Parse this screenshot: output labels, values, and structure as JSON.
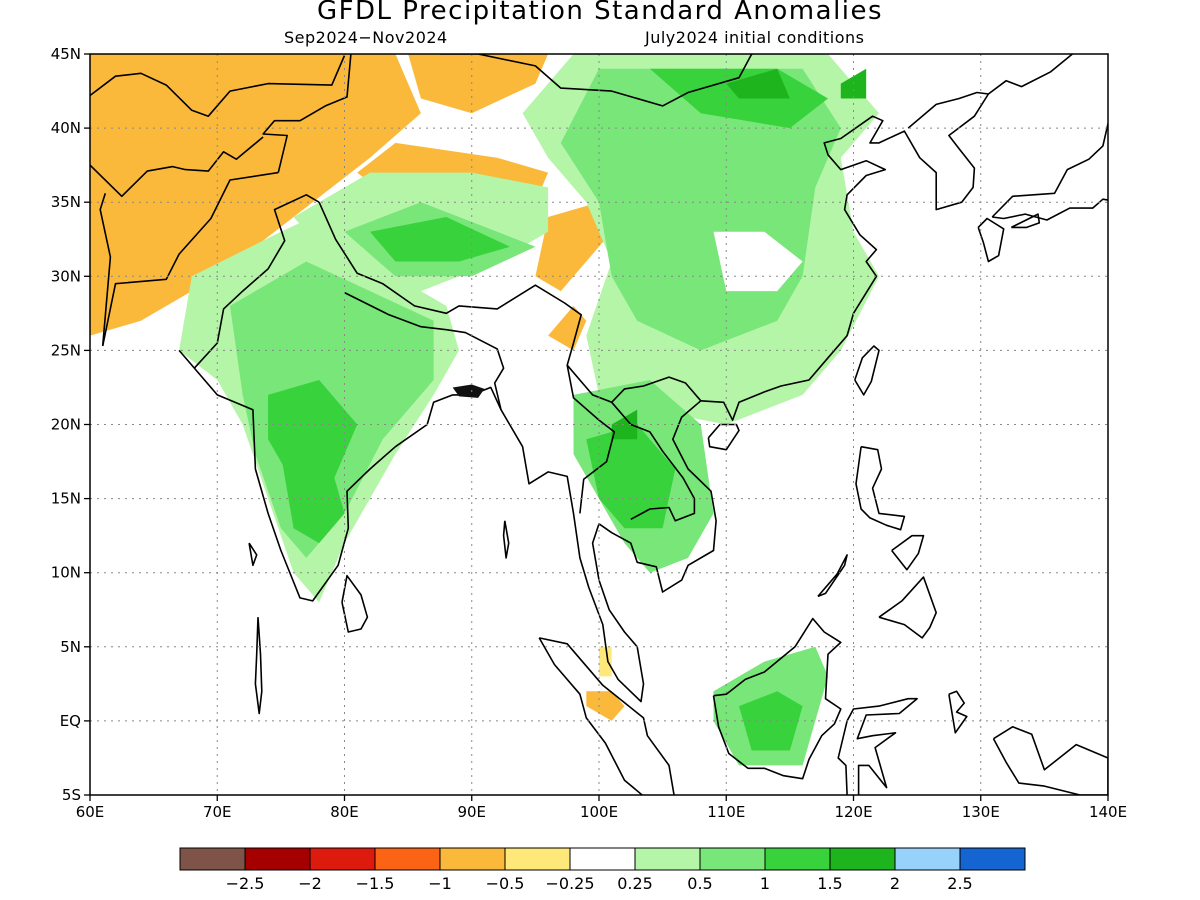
{
  "title": "GFDL Precipitation Standard Anomalies",
  "period": "Sep2024−Nov2024",
  "init": "July2024 initial conditions",
  "lon_ticks": [
    60,
    70,
    80,
    90,
    100,
    110,
    120,
    130,
    140
  ],
  "lon_labels": [
    "60E",
    "70E",
    "80E",
    "90E",
    "100E",
    "110E",
    "120E",
    "130E",
    "140E"
  ],
  "lat_ticks": [
    45,
    40,
    35,
    30,
    25,
    20,
    15,
    10,
    5,
    0,
    -5
  ],
  "lat_labels": [
    "45N",
    "40N",
    "35N",
    "30N",
    "25N",
    "20N",
    "15N",
    "10N",
    "5N",
    "EQ",
    "5S"
  ],
  "extent": {
    "lon": [
      60,
      140
    ],
    "lat": [
      -5,
      45
    ]
  },
  "colorbar": {
    "colors": [
      "#7f5448",
      "#a50000",
      "#dd1a0e",
      "#fa6414",
      "#fbb93c",
      "#fee87a",
      "#ffffff",
      "#b4f5a8",
      "#78e678",
      "#37d23c",
      "#1eb41e",
      "#96d2fa",
      "#1464d2"
    ],
    "labels": [
      "−2.5",
      "−2",
      "−1.5",
      "−1",
      "−0.5",
      "−0.25",
      "0.25",
      "0.5",
      "1",
      "1.5",
      "2",
      "2.5"
    ]
  },
  "regions": [
    {
      "name": "central-asia-dry",
      "level": -1,
      "poly": [
        [
          60,
          45
        ],
        [
          80,
          45
        ],
        [
          82,
          41
        ],
        [
          79,
          37
        ],
        [
          74,
          34
        ],
        [
          68,
          31
        ],
        [
          62,
          28
        ],
        [
          60,
          27
        ]
      ]
    },
    {
      "name": "central-asia-dry-edge",
      "level": -0.5,
      "poly": [
        [
          60,
          45
        ],
        [
          84,
          45
        ],
        [
          86,
          41
        ],
        [
          82,
          38
        ],
        [
          76,
          34
        ],
        [
          70,
          30
        ],
        [
          64,
          27
        ],
        [
          60,
          26
        ]
      ]
    },
    {
      "name": "mongolia-dry",
      "level": -0.5,
      "poly": [
        [
          85,
          45
        ],
        [
          96,
          45
        ],
        [
          95,
          43
        ],
        [
          90,
          41
        ],
        [
          86,
          42
        ]
      ]
    },
    {
      "name": "tarim-dry",
      "level": -0.5,
      "poly": [
        [
          81,
          37
        ],
        [
          84,
          39
        ],
        [
          92,
          38
        ],
        [
          96,
          37
        ],
        [
          95,
          35
        ],
        [
          90,
          36
        ],
        [
          84,
          35
        ]
      ]
    },
    {
      "name": "tibet-east-dry",
      "level": -0.5,
      "poly": [
        [
          96,
          34
        ],
        [
          100,
          35
        ],
        [
          101,
          33
        ],
        [
          99,
          31
        ],
        [
          97,
          29
        ],
        [
          95,
          30
        ]
      ]
    },
    {
      "name": "yunnan-dry",
      "level": -0.5,
      "poly": [
        [
          96,
          26
        ],
        [
          98,
          28
        ],
        [
          99,
          27
        ],
        [
          98,
          25
        ]
      ]
    },
    {
      "name": "sumatra-dry",
      "level": -0.5,
      "poly": [
        [
          99,
          2
        ],
        [
          101,
          2
        ],
        [
          102,
          1
        ],
        [
          101,
          0
        ],
        [
          99,
          1
        ]
      ]
    },
    {
      "name": "sumatra-dry-n",
      "level": -0.25,
      "poly": [
        [
          100,
          5
        ],
        [
          101,
          5
        ],
        [
          101,
          3
        ],
        [
          100,
          3
        ]
      ]
    },
    {
      "name": "india-north-wet",
      "level": 0.5,
      "poly": [
        [
          68,
          30
        ],
        [
          75,
          33
        ],
        [
          80,
          35
        ],
        [
          84,
          30
        ],
        [
          88,
          28
        ],
        [
          89,
          25
        ],
        [
          87,
          22
        ],
        [
          84,
          18
        ],
        [
          80,
          12
        ],
        [
          78,
          8
        ],
        [
          76,
          10
        ],
        [
          74,
          15
        ],
        [
          72,
          20
        ],
        [
          70,
          23
        ],
        [
          67,
          25
        ]
      ]
    },
    {
      "name": "tibet-wet",
      "level": 0.5,
      "poly": [
        [
          76,
          34
        ],
        [
          82,
          37
        ],
        [
          90,
          37
        ],
        [
          96,
          36
        ],
        [
          96,
          33
        ],
        [
          92,
          31
        ],
        [
          86,
          29
        ],
        [
          80,
          30
        ]
      ]
    },
    {
      "name": "china-wet",
      "level": 0.5,
      "poly": [
        [
          98,
          45
        ],
        [
          118,
          45
        ],
        [
          122,
          41
        ],
        [
          119,
          38
        ],
        [
          120,
          33
        ],
        [
          122,
          30
        ],
        [
          119,
          25
        ],
        [
          116,
          22
        ],
        [
          110,
          20
        ],
        [
          104,
          21
        ],
        [
          100,
          22
        ],
        [
          99,
          26
        ],
        [
          101,
          31
        ],
        [
          99,
          35
        ],
        [
          96,
          38
        ],
        [
          94,
          41
        ]
      ]
    },
    {
      "name": "india-wet-core",
      "level": 1,
      "poly": [
        [
          71,
          28
        ],
        [
          77,
          31
        ],
        [
          82,
          29
        ],
        [
          87,
          27
        ],
        [
          87,
          23
        ],
        [
          83,
          19
        ],
        [
          80,
          14
        ],
        [
          77,
          11
        ],
        [
          75,
          13
        ],
        [
          73,
          18
        ],
        [
          72,
          22
        ]
      ]
    },
    {
      "name": "tibet-wet-core",
      "level": 1,
      "poly": [
        [
          80,
          33
        ],
        [
          86,
          35
        ],
        [
          92,
          33
        ],
        [
          95,
          32
        ],
        [
          90,
          30
        ],
        [
          84,
          30
        ]
      ]
    },
    {
      "name": "china-wet-core",
      "level": 1,
      "poly": [
        [
          100,
          44
        ],
        [
          116,
          44
        ],
        [
          119,
          40
        ],
        [
          117,
          36
        ],
        [
          116,
          30
        ],
        [
          114,
          27
        ],
        [
          108,
          25
        ],
        [
          103,
          27
        ],
        [
          101,
          30
        ],
        [
          100,
          35
        ],
        [
          97,
          39
        ]
      ]
    },
    {
      "name": "indochina-wet",
      "level": 1,
      "poly": [
        [
          98,
          22
        ],
        [
          104,
          23
        ],
        [
          108,
          20
        ],
        [
          109,
          14
        ],
        [
          107,
          11
        ],
        [
          104,
          10
        ],
        [
          102,
          12
        ],
        [
          100,
          15
        ],
        [
          98,
          18
        ]
      ]
    },
    {
      "name": "india-west-core",
      "level": 1.5,
      "poly": [
        [
          74,
          22
        ],
        [
          78,
          23
        ],
        [
          81,
          20
        ],
        [
          79,
          16
        ],
        [
          76,
          16
        ],
        [
          74,
          19
        ]
      ]
    },
    {
      "name": "india-south-core",
      "level": 1.5,
      "poly": [
        [
          75,
          18
        ],
        [
          79,
          17
        ],
        [
          80,
          14
        ],
        [
          78,
          12
        ],
        [
          76,
          13
        ]
      ]
    },
    {
      "name": "tibet-core",
      "level": 1.5,
      "poly": [
        [
          82,
          33
        ],
        [
          88,
          34
        ],
        [
          93,
          32
        ],
        [
          89,
          31
        ],
        [
          84,
          31
        ]
      ]
    },
    {
      "name": "indochina-core",
      "level": 1.5,
      "poly": [
        [
          99,
          19
        ],
        [
          103,
          20
        ],
        [
          106,
          17
        ],
        [
          105,
          13
        ],
        [
          102,
          13
        ],
        [
          100,
          15
        ]
      ]
    },
    {
      "name": "mongolia-core",
      "level": 1.5,
      "poly": [
        [
          104,
          44
        ],
        [
          114,
          44
        ],
        [
          118,
          42
        ],
        [
          115,
          40
        ],
        [
          108,
          41
        ]
      ]
    },
    {
      "name": "borneo-wet",
      "level": 1,
      "poly": [
        [
          109,
          2
        ],
        [
          113,
          4
        ],
        [
          117,
          5
        ],
        [
          118,
          3
        ],
        [
          117,
          0
        ],
        [
          116,
          -3
        ],
        [
          111,
          -3
        ],
        [
          109,
          0
        ]
      ]
    },
    {
      "name": "borneo-core",
      "level": 1.5,
      "poly": [
        [
          111,
          1
        ],
        [
          114,
          2
        ],
        [
          116,
          1
        ],
        [
          115,
          -2
        ],
        [
          112,
          -2
        ]
      ]
    },
    {
      "name": "mongolia-wet-max",
      "level": 2,
      "poly": [
        [
          110,
          43
        ],
        [
          114,
          44
        ],
        [
          115,
          42
        ],
        [
          111,
          42
        ]
      ]
    },
    {
      "name": "manchuria-wet-max",
      "level": 2,
      "poly": [
        [
          119,
          43
        ],
        [
          121,
          44
        ],
        [
          121,
          42
        ],
        [
          119,
          42
        ]
      ]
    },
    {
      "name": "laos-wet-max",
      "level": 2,
      "poly": [
        [
          101,
          20
        ],
        [
          103,
          21
        ],
        [
          103,
          19
        ],
        [
          101,
          19
        ]
      ]
    },
    {
      "name": "china-east-dry-spot",
      "level": 0,
      "poly": [
        [
          109,
          33
        ],
        [
          113,
          33
        ],
        [
          116,
          31
        ],
        [
          114,
          29
        ],
        [
          110,
          29
        ]
      ]
    }
  ]
}
